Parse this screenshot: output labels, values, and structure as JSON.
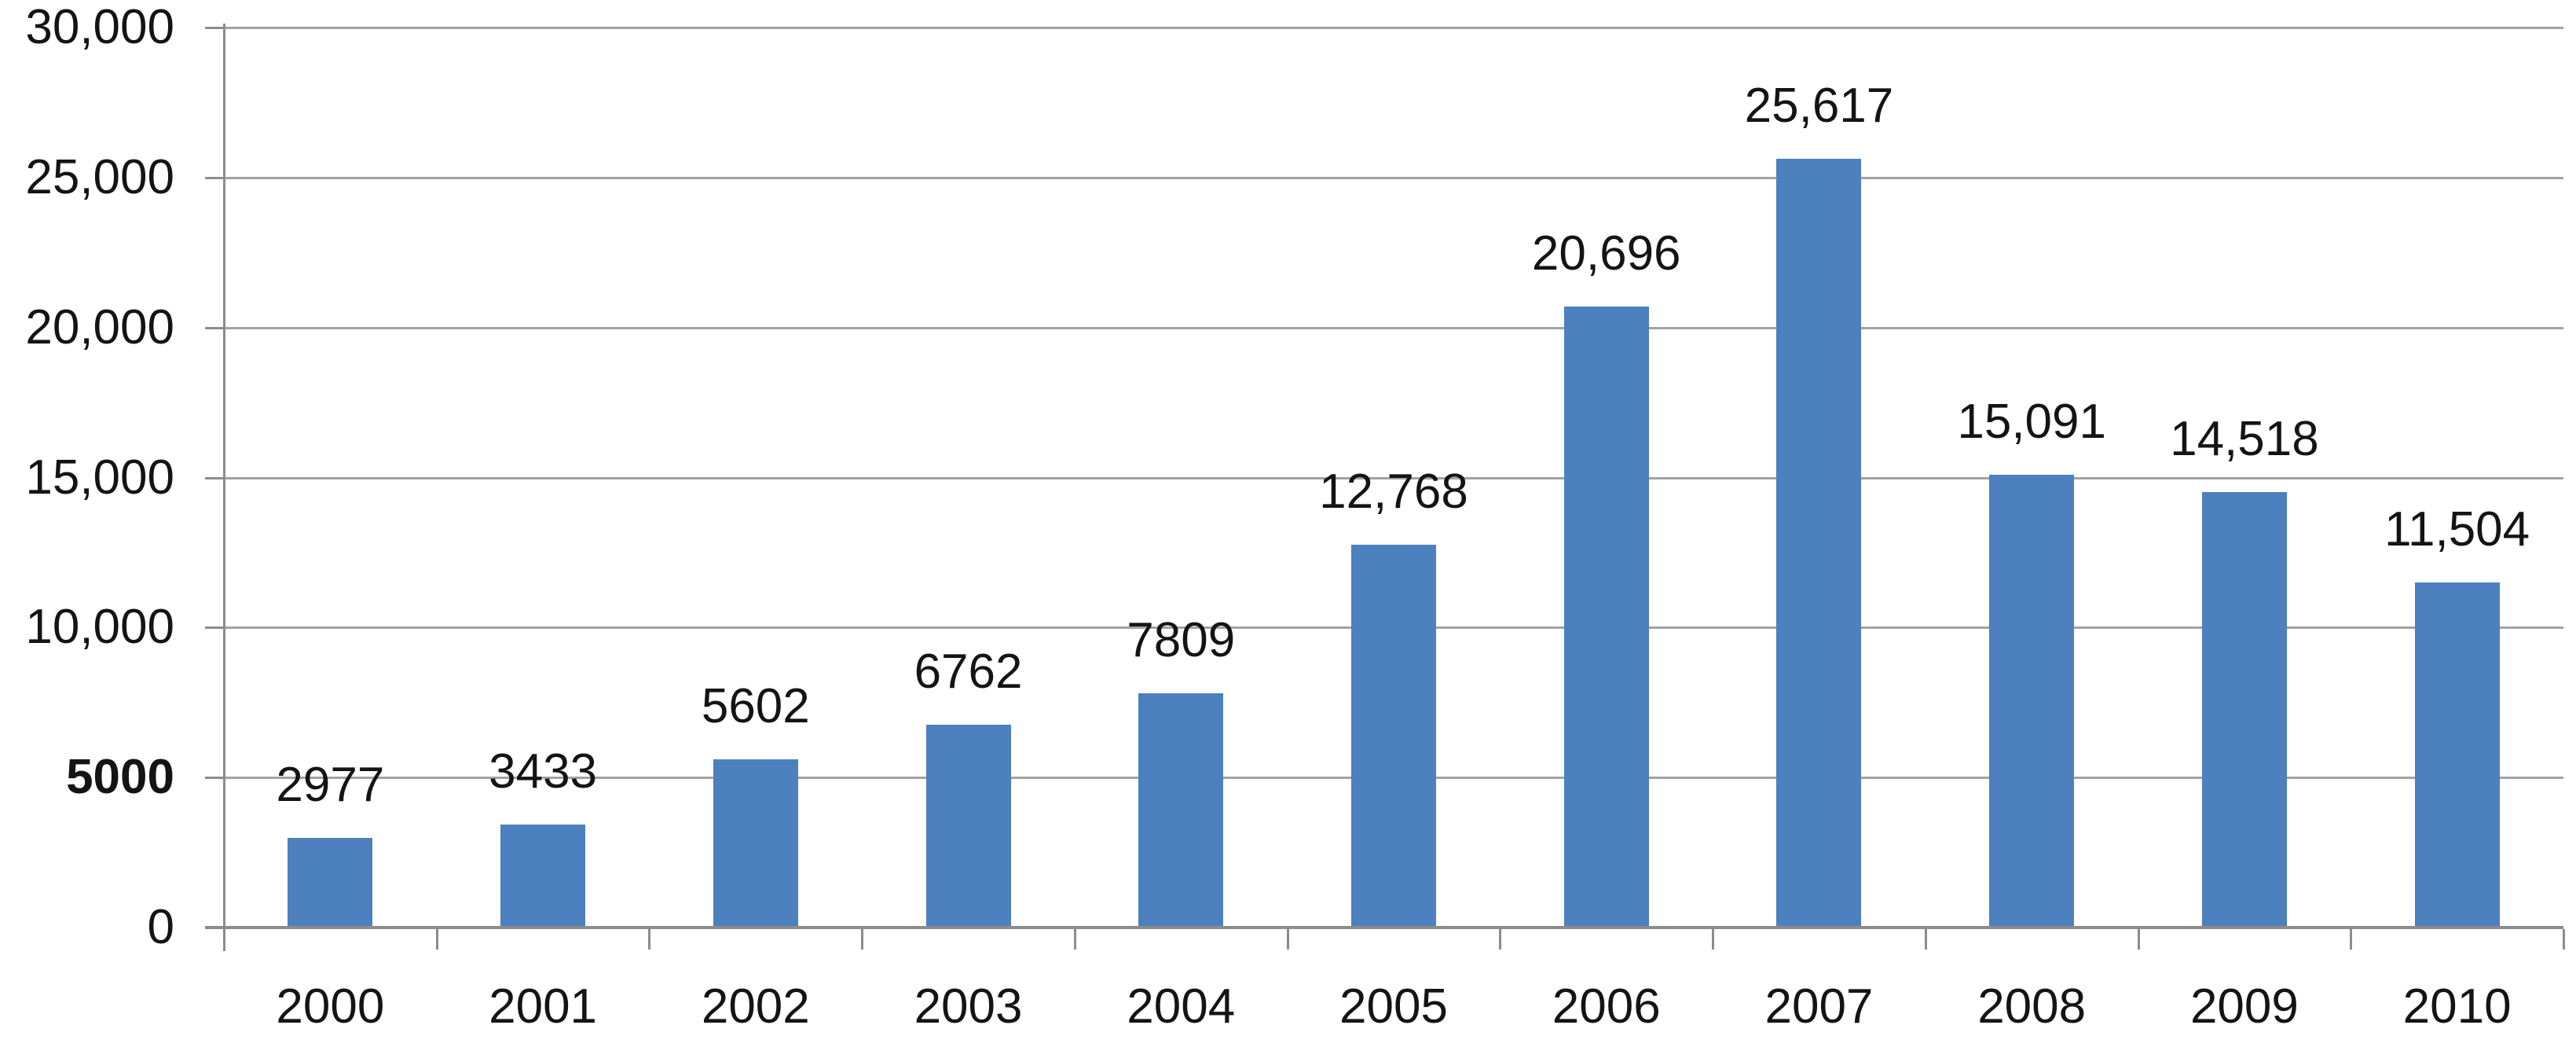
{
  "chart_data": {
    "type": "bar",
    "title": "",
    "xlabel": "",
    "ylabel": "",
    "categories": [
      "2000",
      "2001",
      "2002",
      "2003",
      "2004",
      "2005",
      "2006",
      "2007",
      "2008",
      "2009",
      "2010"
    ],
    "values": [
      2977,
      3433,
      5602,
      6762,
      7809,
      12768,
      20696,
      25617,
      15091,
      14518,
      11504
    ],
    "bar_labels": [
      "2977",
      "3433",
      "5602",
      "6762",
      "7809",
      "12,768",
      "20,696",
      "25,617",
      "15,091",
      "14,518",
      "11,504"
    ],
    "ylim": [
      0,
      30000
    ],
    "grid": true,
    "legend": "none",
    "y_ticks": [
      {
        "value": 0,
        "label": "0",
        "bold": false
      },
      {
        "value": 5000,
        "label": "5000",
        "bold": true
      },
      {
        "value": 10000,
        "label": "10,000",
        "bold": false
      },
      {
        "value": 15000,
        "label": "15,000",
        "bold": false
      },
      {
        "value": 20000,
        "label": "20,000",
        "bold": false
      },
      {
        "value": 25000,
        "label": "25,000",
        "bold": false
      },
      {
        "value": 30000,
        "label": "30,000",
        "bold": false
      }
    ],
    "colors": {
      "bar": "#4C80BE",
      "gridline": "#A2A2A2",
      "axis": "#8C8C8C",
      "text": "#141414",
      "background": "#FFFFFF"
    }
  }
}
